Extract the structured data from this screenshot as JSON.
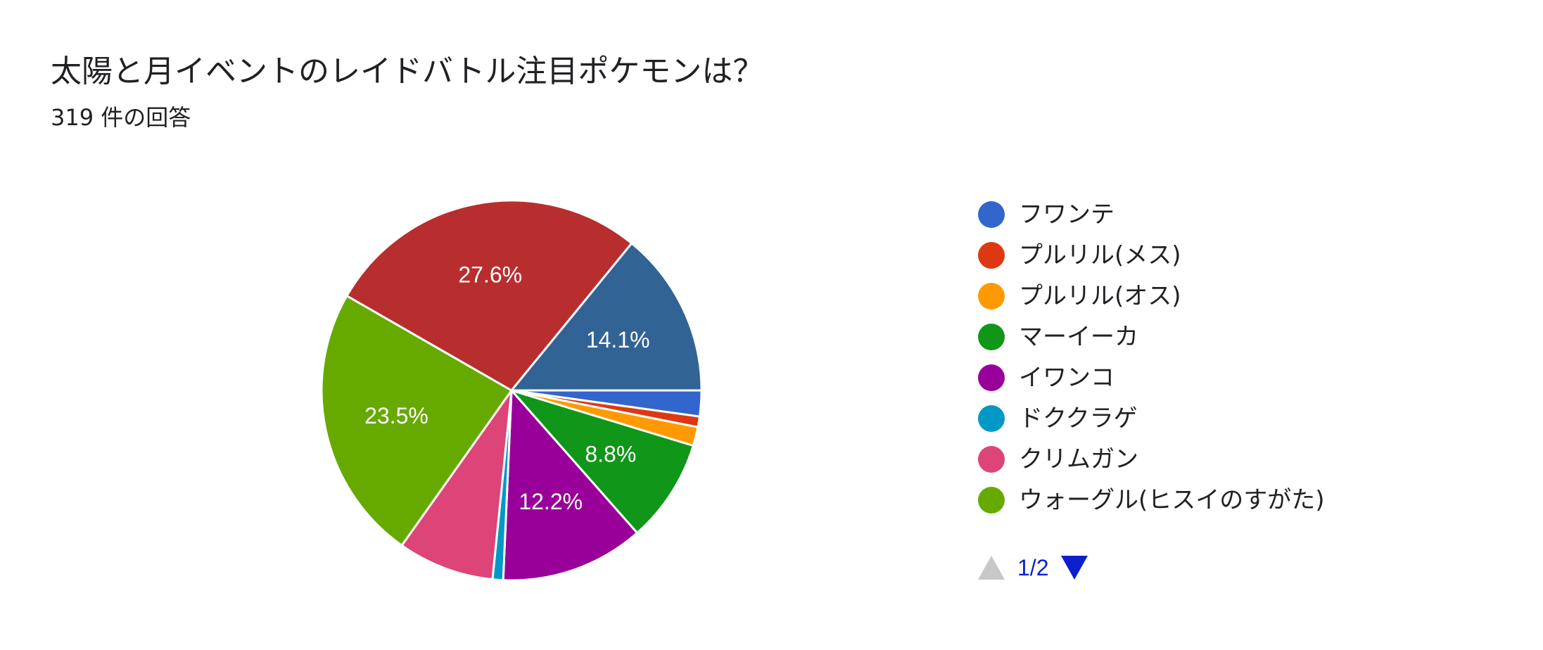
{
  "header": {
    "title": "太陽と月イベントのレイドバトル注目ポケモンは？",
    "response_count": "319 件の回答"
  },
  "chart_data": {
    "type": "pie",
    "total_responses": 319,
    "slices": [
      {
        "name": "フワンテ",
        "value": 2.2,
        "color": "#3366cc",
        "label": ""
      },
      {
        "name": "プルリル(メス)",
        "value": 0.9,
        "color": "#dc3912",
        "label": ""
      },
      {
        "name": "プルリル(オス)",
        "value": 1.6,
        "color": "#ff9900",
        "label": ""
      },
      {
        "name": "マーイーカ",
        "value": 8.8,
        "color": "#109618",
        "label": "8.8%"
      },
      {
        "name": "イワンコ",
        "value": 12.2,
        "color": "#990099",
        "label": "12.2%"
      },
      {
        "name": "ドククラゲ",
        "value": 0.9,
        "color": "#0099c6",
        "label": ""
      },
      {
        "name": "クリムガン",
        "value": 8.2,
        "color": "#dd4477",
        "label": ""
      },
      {
        "name": "ウォーグル(ヒスイのすがた)",
        "value": 23.5,
        "color": "#66aa00",
        "label": "23.5%"
      },
      {
        "name": "",
        "value": 27.6,
        "color": "#b82e2e",
        "label": "27.6%"
      },
      {
        "name": "",
        "value": 14.1,
        "color": "#316395",
        "label": "14.1%"
      }
    ],
    "start_direction": "east",
    "direction": "clockwise"
  },
  "legend": {
    "items": [
      {
        "label": "フワンテ",
        "color": "#3366cc"
      },
      {
        "label": "プルリル(メス)",
        "color": "#dc3912"
      },
      {
        "label": "プルリル(オス)",
        "color": "#ff9900"
      },
      {
        "label": "マーイーカ",
        "color": "#109618"
      },
      {
        "label": "イワンコ",
        "color": "#990099"
      },
      {
        "label": "ドククラゲ",
        "color": "#0099c6"
      },
      {
        "label": "クリムガン",
        "color": "#dd4477"
      },
      {
        "label": "ウォーグル(ヒスイのすがた)",
        "color": "#66aa00"
      }
    ]
  },
  "pager": {
    "text": "1/2"
  }
}
